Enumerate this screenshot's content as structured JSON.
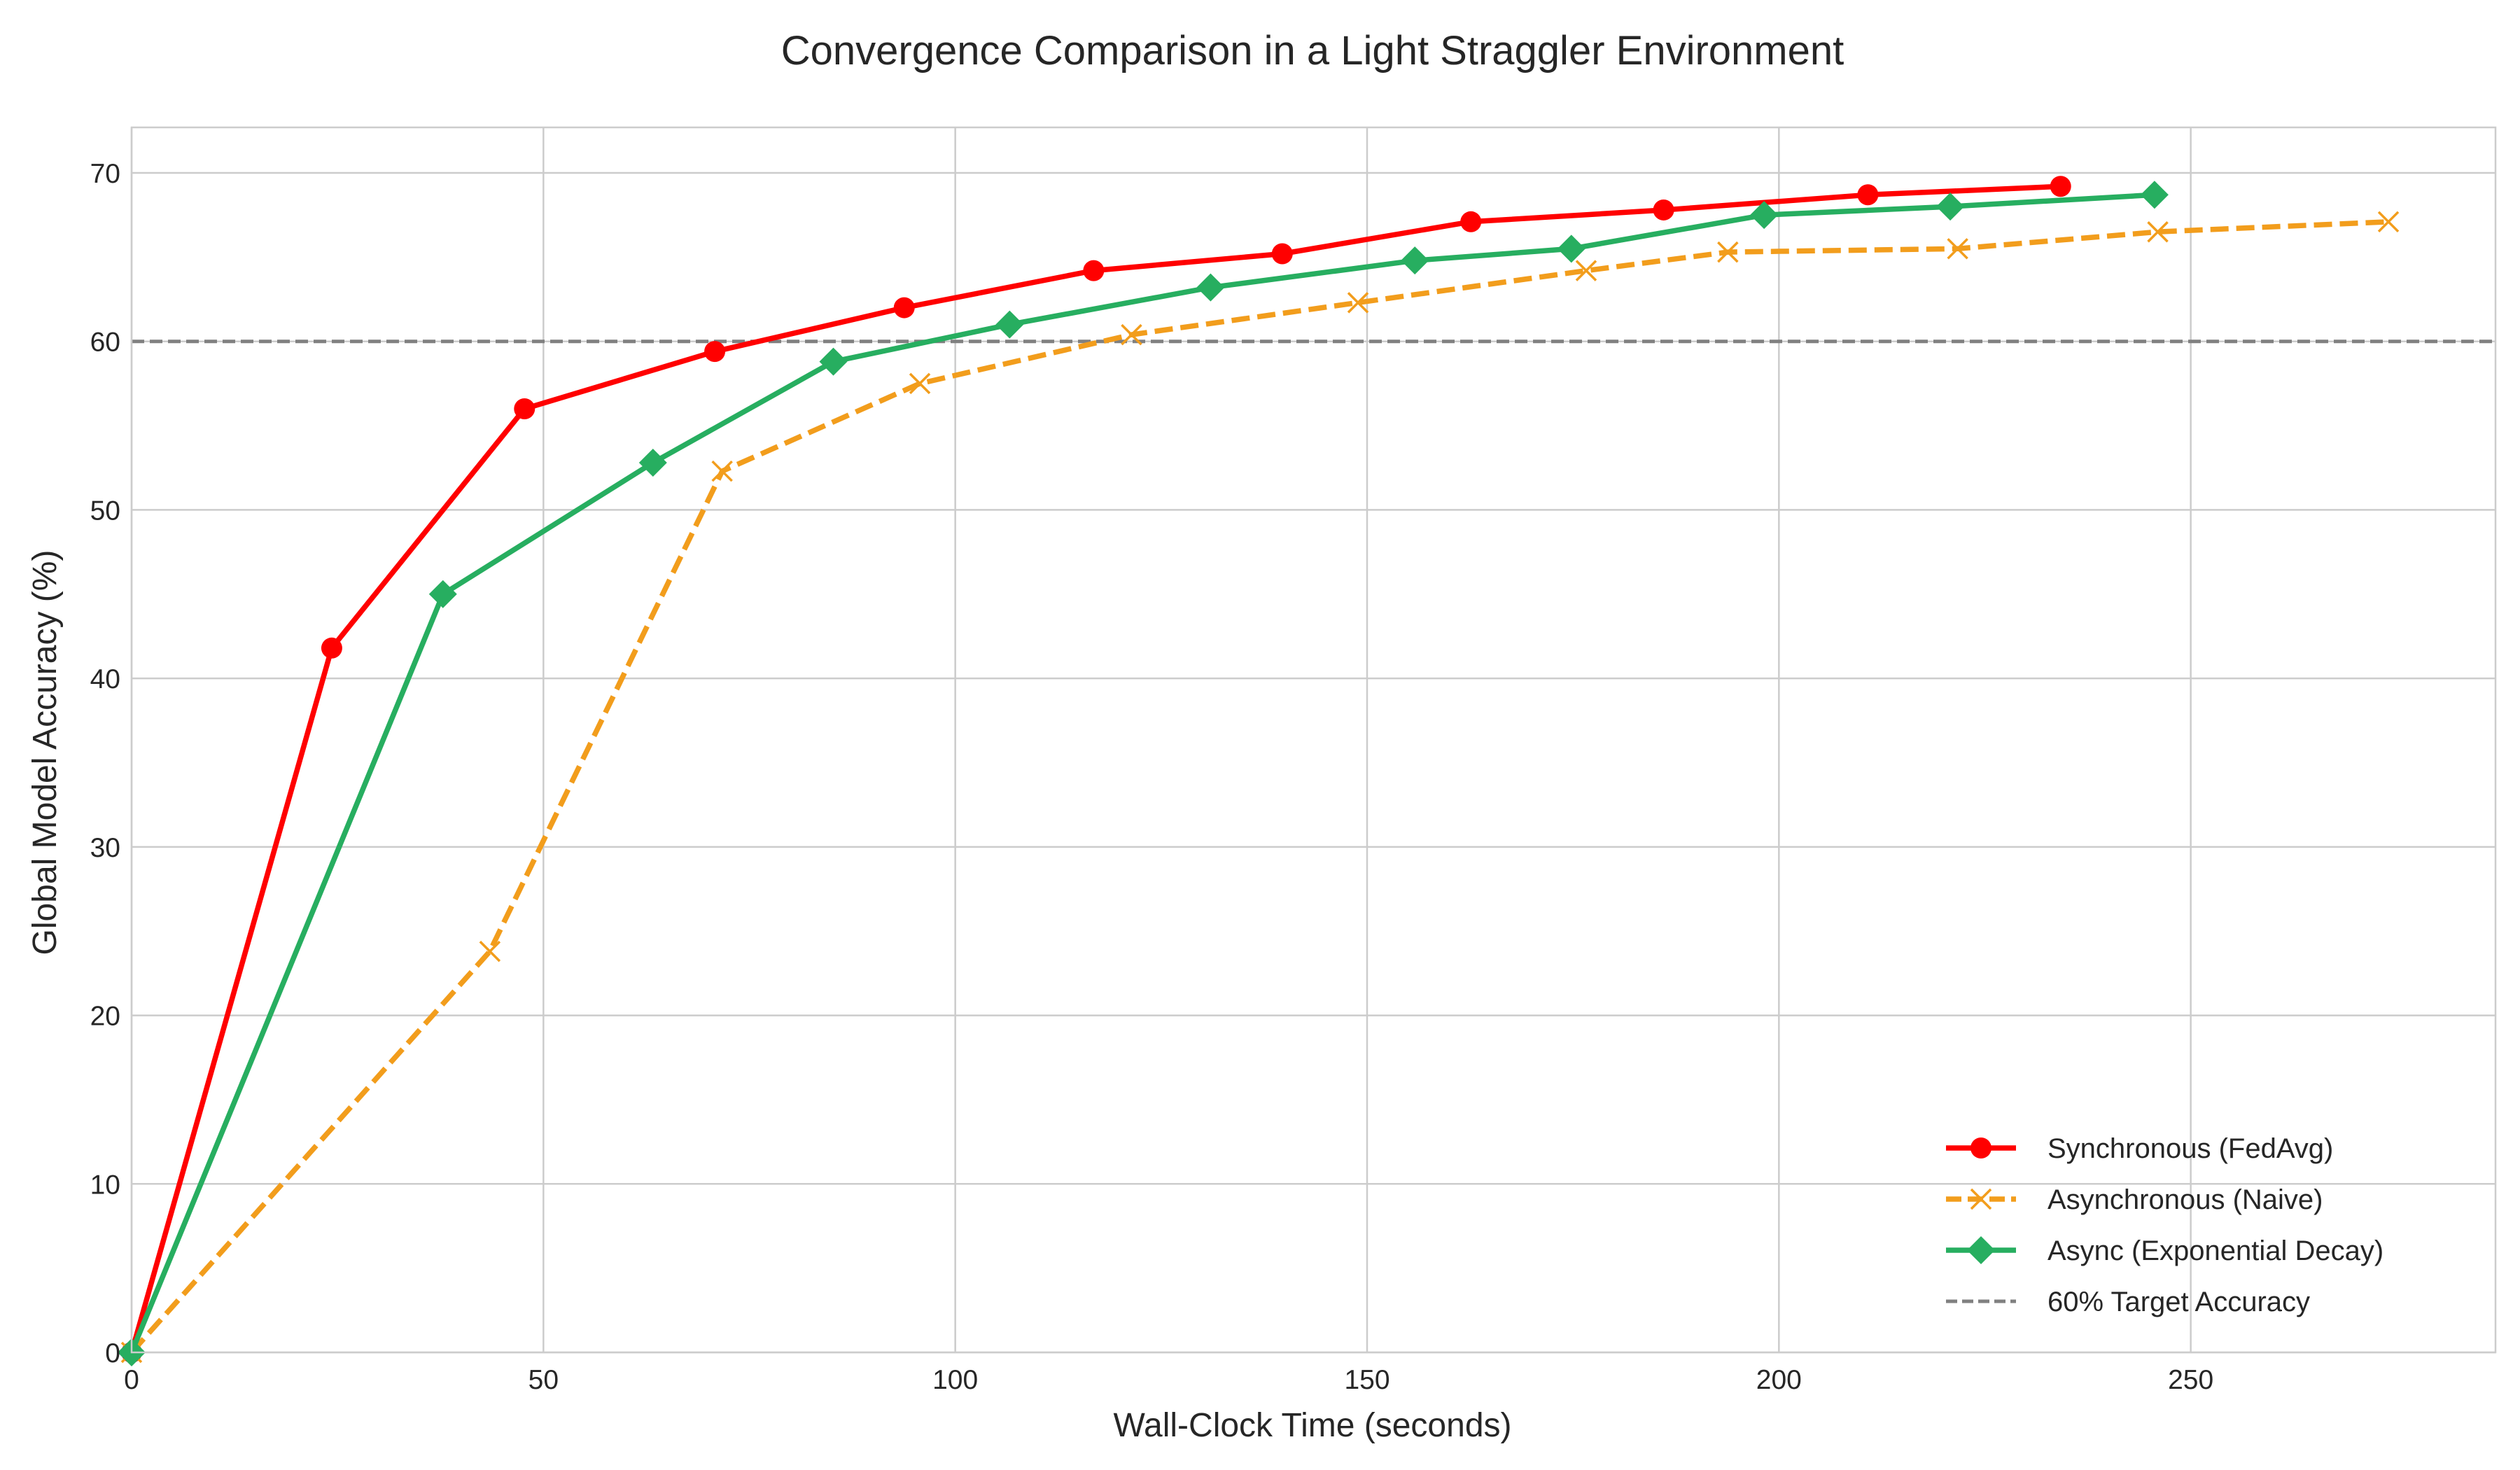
{
  "chart_data": {
    "type": "line",
    "title": "Convergence Comparison in a Light Straggler Environment",
    "xlabel": "Wall-Clock Time (seconds)",
    "ylabel": "Global Model Accuracy (%)",
    "xlim": [
      0,
      287
    ],
    "ylim": [
      0,
      72.7
    ],
    "xticks": [
      0,
      50,
      100,
      150,
      200,
      250
    ],
    "yticks": [
      0,
      10,
      20,
      30,
      40,
      50,
      60,
      70
    ],
    "grid": true,
    "legend_position": "lower-right",
    "series": [
      {
        "name": "Synchronous (FedAvg)",
        "color": "#ff0000",
        "line_style": "solid",
        "marker": "circle",
        "points": [
          [
            0,
            0
          ],
          [
            24.3,
            41.8
          ],
          [
            47.7,
            56.0
          ],
          [
            70.8,
            59.4
          ],
          [
            93.8,
            62.0
          ],
          [
            116.8,
            64.2
          ],
          [
            139.7,
            65.2
          ],
          [
            162.6,
            67.1
          ],
          [
            186.0,
            67.8
          ],
          [
            210.8,
            68.7
          ],
          [
            234.2,
            69.2
          ]
        ]
      },
      {
        "name": "Asynchronous (Naive)",
        "color": "#f29d1c",
        "line_style": "dashed",
        "marker": "x",
        "points": [
          [
            0,
            0
          ],
          [
            43.5,
            23.8
          ],
          [
            71.7,
            52.3
          ],
          [
            95.7,
            57.5
          ],
          [
            121.4,
            60.4
          ],
          [
            148.9,
            62.3
          ],
          [
            176.6,
            64.2
          ],
          [
            193.8,
            65.3
          ],
          [
            221.7,
            65.5
          ],
          [
            246.0,
            66.5
          ],
          [
            274.0,
            67.1
          ]
        ]
      },
      {
        "name": "Async (Exponential Decay)",
        "color": "#27ae60",
        "line_style": "solid",
        "marker": "diamond",
        "points": [
          [
            0,
            0
          ],
          [
            37.8,
            45.0
          ],
          [
            63.3,
            52.8
          ],
          [
            85.2,
            58.8
          ],
          [
            106.6,
            61.0
          ],
          [
            131.0,
            63.2
          ],
          [
            155.8,
            64.8
          ],
          [
            174.8,
            65.5
          ],
          [
            198.2,
            67.5
          ],
          [
            220.8,
            68.0
          ],
          [
            245.6,
            68.7
          ]
        ]
      }
    ],
    "reference_line": {
      "name": "60% Target Accuracy",
      "y": 60,
      "color": "#808080",
      "line_style": "dashed"
    }
  }
}
